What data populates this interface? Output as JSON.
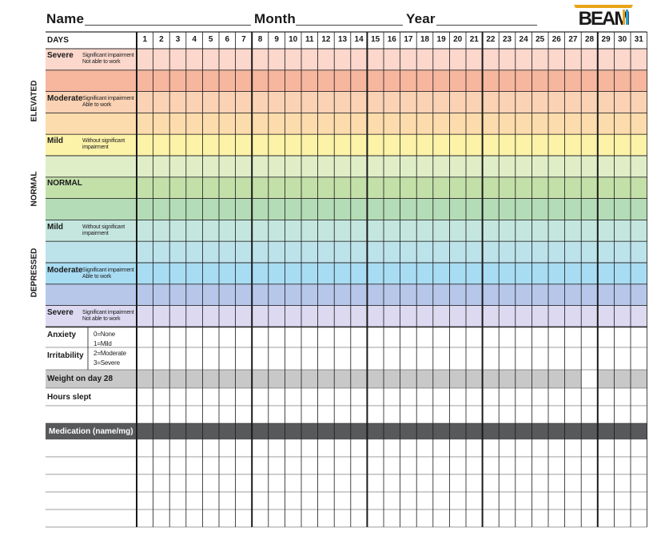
{
  "header": {
    "name_label": "Name",
    "month_label": "Month",
    "year_label": "Year",
    "name_value": "",
    "month_value": "",
    "year_value": ""
  },
  "logo": {
    "text": "BEAM"
  },
  "table": {
    "days_label": "DAYS",
    "days": [
      "1",
      "2",
      "3",
      "4",
      "5",
      "6",
      "7",
      "8",
      "9",
      "10",
      "11",
      "12",
      "13",
      "14",
      "15",
      "16",
      "17",
      "18",
      "19",
      "20",
      "21",
      "22",
      "23",
      "24",
      "25",
      "26",
      "27",
      "28",
      "29",
      "30",
      "31"
    ],
    "groups": {
      "elevated": "ELEVATED",
      "normal": "NORMAL",
      "depressed": "DEPRESSED"
    },
    "mood_levels": [
      {
        "label": "Severe",
        "note_1": "Significant impairment",
        "note_2": "Not able to work"
      },
      {
        "label": "Moderate",
        "note_1": "Significant impairment",
        "note_2": "Able to work"
      },
      {
        "label": "Mild",
        "note_1": "Without significant",
        "note_2": "impairment"
      },
      {
        "label": "NORMAL",
        "note_1": "",
        "note_2": ""
      },
      {
        "label": "Mild",
        "note_1": "Without significant",
        "note_2": "impairment"
      },
      {
        "label": "Moderate",
        "note_1": "Significant impairment",
        "note_2": "Able to work"
      },
      {
        "label": "Severe",
        "note_1": "Significant impairment",
        "note_2": "Not able to work"
      }
    ],
    "anxiety_label": "Anxiety",
    "irritability_label": "Irritability",
    "scale": [
      "0=None",
      "1=Mild",
      "2=Moderate",
      "3=Severe"
    ],
    "weight_label": "Weight on day 28",
    "hours_label": "Hours slept",
    "medication_label": "Medication (name/mg)"
  },
  "colors": {
    "band_colors": [
      "#fbd7cc",
      "#f7b69e",
      "#fbd2b4",
      "#fcdcac",
      "#fcf2a8",
      "#e0eec8",
      "#c3e0a8",
      "#b4dcb6",
      "#c4e6de",
      "#bde3ea",
      "#a8dcf3",
      "#b6c7ea",
      "#dcd9f1"
    ],
    "gray_row": "#c8c8c8",
    "dark_bar": "#58595b"
  }
}
